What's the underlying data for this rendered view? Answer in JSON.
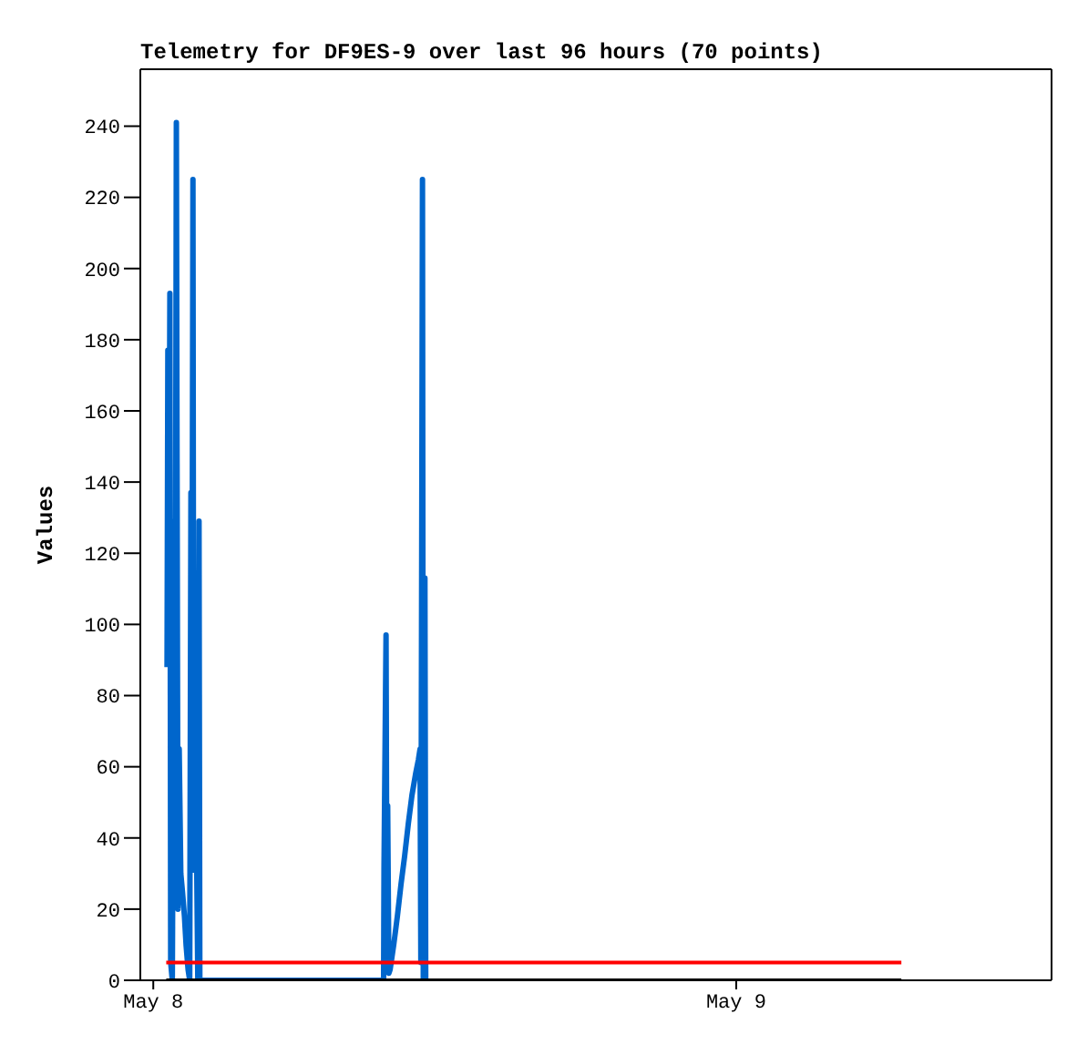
{
  "chart_data": {
    "type": "line",
    "title": "Telemetry for DF9ES-9 over last 96 hours (70 points)",
    "ylabel": "Values",
    "xlim": [
      "--05-07T23:28",
      "--05-09T12:59"
    ],
    "xticks": [
      {
        "value": "--05-08",
        "label": "May 8"
      },
      {
        "value": "--05-09",
        "label": "May 9"
      }
    ],
    "ylim": [
      0,
      256
    ],
    "yticks": [
      0,
      20,
      40,
      60,
      80,
      100,
      120,
      140,
      160,
      180,
      200,
      220,
      240
    ],
    "marker": "none",
    "line_style": "solid",
    "series": [
      {
        "color": "#0066cc",
        "x": [
          "--05-08T00:34",
          "--05-08T00:36",
          "--05-08T00:38",
          "--05-08T00:41",
          "--05-08T00:43",
          "--05-08T00:47",
          "--05-08T00:52",
          "--05-08T00:54",
          "--05-08T00:57",
          "--05-08T01:01",
          "--05-08T01:04",
          "--05-08T01:08",
          "--05-08T01:12",
          "--05-08T01:17",
          "--05-08T01:21",
          "--05-08T01:26",
          "--05-08T01:30",
          "--05-08T01:33",
          "--05-08T01:35",
          "--05-08T01:38",
          "--05-08T01:40",
          "--05-08T01:42",
          "--05-08T01:46",
          "--05-08T01:50",
          "--05-08T01:53",
          "--05-08T01:55",
          "--05-08T09:29",
          "--05-08T09:30",
          "--05-08T09:35",
          "--05-08T09:37",
          "--05-08T09:39",
          "--05-08T09:42",
          "--05-08T09:45",
          "--05-08T09:54",
          "--05-08T10:03",
          "--05-08T10:12",
          "--05-08T10:21",
          "--05-08T10:30",
          "--05-08T10:39",
          "--05-08T10:48",
          "--05-08T10:55",
          "--05-08T10:59",
          "--05-08T11:01",
          "--05-08T11:05",
          "--05-08T11:07",
          "--05-08T11:11",
          "--05-08T11:13"
        ],
        "values": [
          88,
          177,
          90,
          193,
          5,
          0,
          129,
          40,
          241,
          20,
          65,
          30,
          25,
          18,
          10,
          3,
          0,
          137,
          50,
          225,
          31,
          97,
          48,
          0,
          129,
          0,
          0,
          32,
          97,
          20,
          49,
          2,
          3,
          10,
          18,
          27,
          35,
          44,
          52,
          58,
          62,
          65,
          5,
          225,
          0,
          113,
          0
        ]
      },
      {
        "color": "#ff0000",
        "x": [
          "--05-08T00:32",
          "--05-09T06:48"
        ],
        "values": [
          5,
          5
        ]
      },
      {
        "color": "#000000",
        "x": [
          "--05-08T00:32",
          "--05-09T06:48"
        ],
        "values": [
          0,
          0
        ]
      }
    ]
  }
}
